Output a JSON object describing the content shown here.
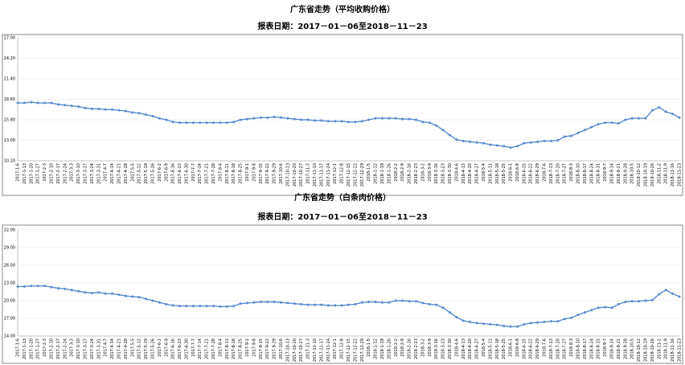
{
  "chart_data": [
    {
      "type": "line",
      "title": "广东省走势（平均收购价格）",
      "subtitle": "报表日期：2017－01－06至2018－11－23",
      "categories": [
        "2017-1-6",
        "2017-1-13",
        "2017-1-20",
        "2017-1-27",
        "2017-2-3",
        "2017-2-10",
        "2017-2-17",
        "2017-2-24",
        "2017-3-3",
        "2017-3-10",
        "2017-3-17",
        "2017-3-24",
        "2017-3-31",
        "2017-4-7",
        "2017-4-14",
        "2017-4-21",
        "2017-4-28",
        "2017-5-5",
        "2017-5-12",
        "2017-5-19",
        "2017-5-26",
        "2017-6-2",
        "2017-6-9",
        "2017-6-16",
        "2017-6-23",
        "2017-6-30",
        "2017-7-7",
        "2017-7-14",
        "2017-7-21",
        "2017-7-28",
        "2017-8-4",
        "2017-8-11",
        "2017-8-18",
        "2017-8-25",
        "2017-9-1",
        "2017-9-8",
        "2017-9-15",
        "2017-9-22",
        "2017-9-29",
        "2017-10-6",
        "2017-10-13",
        "2017-10-20",
        "2017-10-27",
        "2017-11-3",
        "2017-11-10",
        "2017-11-17",
        "2017-11-24",
        "2017-12-1",
        "2017-12-8",
        "2017-12-15",
        "2017-12-22",
        "2017-12-29",
        "2018-1-5",
        "2018-1-12",
        "2018-1-19",
        "2018-1-26",
        "2018-2-2",
        "2018-2-9",
        "2018-2-16",
        "2018-2-23",
        "2018-3-2",
        "2018-3-9",
        "2018-3-16",
        "2018-3-23",
        "2018-3-30",
        "2018-4-6",
        "2018-4-13",
        "2018-4-20",
        "2018-4-27",
        "2018-5-4",
        "2018-5-11",
        "2018-5-18",
        "2018-5-25",
        "2018-6-1",
        "2018-6-8",
        "2018-6-15",
        "2018-6-22",
        "2018-6-29",
        "2018-7-6",
        "2018-7-13",
        "2018-7-20",
        "2018-7-27",
        "2018-8-3",
        "2018-8-10",
        "2018-8-17",
        "2018-8-24",
        "2018-8-31",
        "2018-9-7",
        "2018-9-14",
        "2018-9-21",
        "2018-9-28",
        "2018-10-5",
        "2018-10-12",
        "2018-10-19",
        "2018-10-26",
        "2018-11-2",
        "2018-11-9",
        "2018-11-16",
        "2018-11-23"
      ],
      "series": [
        {
          "color": "#5b8bd0",
          "values": [
            18.1,
            18.1,
            18.2,
            18.1,
            18.1,
            18.1,
            17.9,
            17.8,
            17.7,
            17.6,
            17.4,
            17.3,
            17.3,
            17.2,
            17.2,
            17.1,
            17.0,
            16.8,
            16.7,
            16.5,
            16.3,
            16.0,
            15.8,
            15.5,
            15.4,
            15.4,
            15.4,
            15.4,
            15.4,
            15.4,
            15.4,
            15.4,
            15.5,
            15.8,
            15.9,
            16.0,
            16.1,
            16.1,
            16.2,
            16.1,
            16.0,
            15.9,
            15.8,
            15.8,
            15.7,
            15.7,
            15.6,
            15.6,
            15.6,
            15.5,
            15.5,
            15.6,
            15.8,
            16.0,
            16.0,
            16.0,
            16.0,
            15.9,
            15.9,
            15.8,
            15.5,
            15.4,
            15.0,
            14.4,
            13.7,
            13.1,
            12.9,
            12.8,
            12.7,
            12.6,
            12.4,
            12.3,
            12.2,
            12.0,
            12.2,
            12.6,
            12.7,
            12.8,
            12.9,
            12.9,
            13.0,
            13.5,
            13.6,
            14.0,
            14.4,
            14.8,
            15.2,
            15.4,
            15.4,
            15.3,
            15.8,
            16.0,
            16.0,
            16.0,
            17.1,
            17.5,
            16.9,
            16.6,
            16.1
          ]
        }
      ],
      "ylim": [
        10.2,
        27.0
      ],
      "yticks": [
        {
          "value": 10.2,
          "label": "10.20"
        },
        {
          "value": 13.0,
          "label": "13.00"
        },
        {
          "value": 15.8,
          "label": "15.80"
        },
        {
          "value": 18.6,
          "label": "18.60"
        },
        {
          "value": 21.4,
          "label": "21.40"
        },
        {
          "value": 24.2,
          "label": "24.20"
        },
        {
          "value": 27.0,
          "label": "27.00"
        }
      ],
      "grid": true
    },
    {
      "type": "line",
      "title": "广东省走势（白条肉价格）",
      "subtitle": "报表日期：2017－01－06至2018－11－23",
      "categories": [
        "2017-1-6",
        "2017-1-13",
        "2017-1-20",
        "2017-1-27",
        "2017-2-3",
        "2017-2-10",
        "2017-2-17",
        "2017-2-24",
        "2017-3-3",
        "2017-3-10",
        "2017-3-17",
        "2017-3-24",
        "2017-3-31",
        "2017-4-7",
        "2017-4-14",
        "2017-4-21",
        "2017-4-28",
        "2017-5-5",
        "2017-5-12",
        "2017-5-19",
        "2017-5-26",
        "2017-6-2",
        "2017-6-9",
        "2017-6-16",
        "2017-6-23",
        "2017-6-30",
        "2017-7-7",
        "2017-7-14",
        "2017-7-21",
        "2017-7-28",
        "2017-8-4",
        "2017-8-11",
        "2017-8-18",
        "2017-8-25",
        "2017-9-1",
        "2017-9-8",
        "2017-9-15",
        "2017-9-22",
        "2017-9-29",
        "2017-10-6",
        "2017-10-13",
        "2017-10-20",
        "2017-10-27",
        "2017-11-3",
        "2017-11-10",
        "2017-11-17",
        "2017-11-24",
        "2017-12-1",
        "2017-12-8",
        "2017-12-15",
        "2017-12-22",
        "2017-12-29",
        "2018-1-5",
        "2018-1-12",
        "2018-1-19",
        "2018-1-26",
        "2018-2-2",
        "2018-2-9",
        "2018-2-16",
        "2018-2-23",
        "2018-3-2",
        "2018-3-9",
        "2018-3-16",
        "2018-3-23",
        "2018-3-30",
        "2018-4-6",
        "2018-4-13",
        "2018-4-20",
        "2018-4-27",
        "2018-5-4",
        "2018-5-11",
        "2018-5-18",
        "2018-5-25",
        "2018-6-1",
        "2018-6-8",
        "2018-6-15",
        "2018-6-22",
        "2018-6-29",
        "2018-7-6",
        "2018-7-13",
        "2018-7-20",
        "2018-7-27",
        "2018-8-3",
        "2018-8-10",
        "2018-8-17",
        "2018-8-24",
        "2018-8-31",
        "2018-9-7",
        "2018-9-14",
        "2018-9-21",
        "2018-9-28",
        "2018-10-5",
        "2018-10-12",
        "2018-10-19",
        "2018-10-26",
        "2018-11-2",
        "2018-11-9",
        "2018-11-16",
        "2018-11-23"
      ],
      "series": [
        {
          "color": "#5b8bd0",
          "values": [
            22.4,
            22.4,
            22.5,
            22.5,
            22.5,
            22.3,
            22.1,
            22.0,
            21.8,
            21.6,
            21.4,
            21.3,
            21.4,
            21.2,
            21.2,
            21.0,
            20.8,
            20.7,
            20.6,
            20.3,
            20.0,
            19.7,
            19.4,
            19.2,
            19.1,
            19.1,
            19.1,
            19.1,
            19.1,
            19.1,
            19.0,
            19.0,
            19.1,
            19.5,
            19.6,
            19.7,
            19.8,
            19.8,
            19.8,
            19.7,
            19.6,
            19.5,
            19.4,
            19.3,
            19.3,
            19.3,
            19.2,
            19.2,
            19.2,
            19.3,
            19.4,
            19.7,
            19.8,
            19.8,
            19.7,
            19.7,
            20.0,
            20.0,
            19.9,
            19.9,
            19.6,
            19.4,
            19.3,
            18.8,
            18.0,
            17.2,
            16.6,
            16.4,
            16.2,
            16.1,
            16.0,
            15.9,
            15.7,
            15.6,
            15.6,
            16.0,
            16.2,
            16.3,
            16.4,
            16.5,
            16.5,
            16.9,
            17.1,
            17.6,
            18.0,
            18.4,
            18.8,
            18.9,
            18.8,
            19.4,
            19.8,
            19.9,
            19.9,
            20.0,
            20.1,
            21.1,
            21.8,
            21.2,
            20.7
          ]
        }
      ],
      "ylim": [
        14.0,
        32.0
      ],
      "yticks": [
        {
          "value": 14.0,
          "label": "14.00"
        },
        {
          "value": 17.0,
          "label": "17.00"
        },
        {
          "value": 20.0,
          "label": "20.00"
        },
        {
          "value": 23.0,
          "label": "23.00"
        },
        {
          "value": 26.0,
          "label": "26.00"
        },
        {
          "value": 29.0,
          "label": "29.00"
        },
        {
          "value": 32.0,
          "label": "32.00"
        }
      ],
      "grid": true
    }
  ]
}
